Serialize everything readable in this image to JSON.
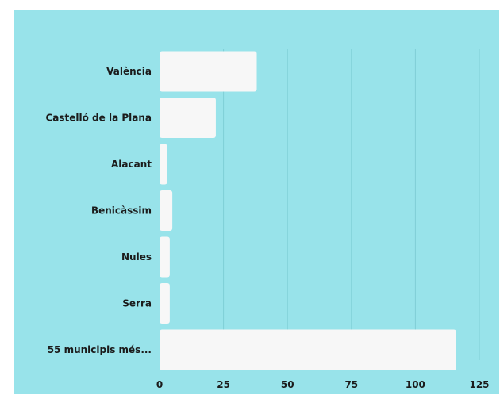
{
  "chart_data": {
    "type": "bar",
    "orientation": "horizontal",
    "categories": [
      "València",
      "Castelló de la Plana",
      "Alacant",
      "Benicàssim",
      "Nules",
      "Serra",
      "55 municipis més..."
    ],
    "values": [
      38,
      22,
      3,
      5,
      4,
      4,
      116
    ],
    "xlim": [
      0,
      125
    ],
    "xticks": [
      "0",
      "25",
      "50",
      "75",
      "100",
      "125"
    ],
    "title": "",
    "xlabel": "",
    "ylabel": "",
    "grid": true,
    "legend": "none"
  },
  "colors": {
    "background": "#98e3ea",
    "bar": "#f7f7f7",
    "grid": "#7fcfd6",
    "text": "#1b1b1b"
  }
}
